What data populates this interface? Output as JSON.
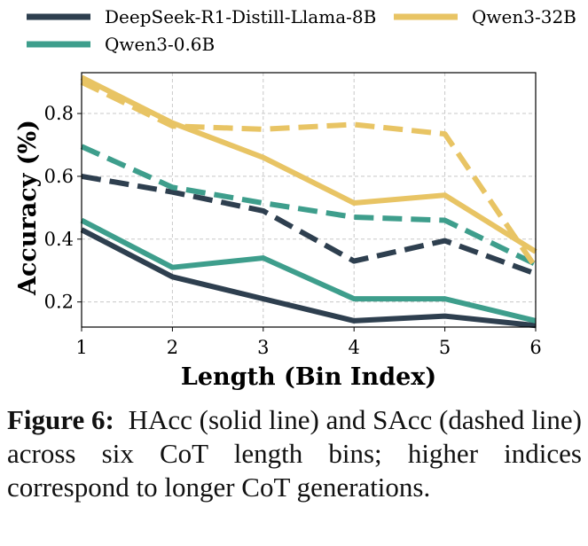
{
  "chart_data": {
    "type": "line",
    "xlabel": "Length (Bin Index)",
    "ylabel": "Accuracy (%)",
    "x": [
      1,
      2,
      3,
      4,
      5,
      6
    ],
    "xlim": [
      1,
      6
    ],
    "ylim": [
      0.12,
      0.93
    ],
    "x_ticks": [
      "1",
      "2",
      "3",
      "4",
      "5",
      "6"
    ],
    "y_ticks": [
      {
        "value": 0.2,
        "label": "0.2"
      },
      {
        "value": 0.4,
        "label": "0.4"
      },
      {
        "value": 0.6,
        "label": "0.6"
      },
      {
        "value": 0.8,
        "label": "0.8"
      }
    ],
    "grid": true,
    "legend_placement": "top (outside plot)",
    "series": [
      {
        "name": "DeepSeek-R1-Distill-Llama-8B",
        "metric": "HAcc",
        "style": "solid",
        "color": "#2e3f4f",
        "values": [
          0.43,
          0.28,
          0.21,
          0.14,
          0.155,
          0.125
        ]
      },
      {
        "name": "DeepSeek-R1-Distill-Llama-8B",
        "metric": "SAcc",
        "style": "dashed",
        "color": "#2e3f4f",
        "values": [
          0.6,
          0.55,
          0.49,
          0.33,
          0.395,
          0.29
        ]
      },
      {
        "name": "Qwen3-0.6B",
        "metric": "HAcc",
        "style": "solid",
        "color": "#3e9e8c",
        "values": [
          0.46,
          0.31,
          0.34,
          0.21,
          0.21,
          0.14
        ]
      },
      {
        "name": "Qwen3-0.6B",
        "metric": "SAcc",
        "style": "dashed",
        "color": "#3e9e8c",
        "values": [
          0.695,
          0.565,
          0.515,
          0.47,
          0.46,
          0.32
        ]
      },
      {
        "name": "Qwen3-32B",
        "metric": "HAcc",
        "style": "solid",
        "color": "#e8c464",
        "values": [
          0.915,
          0.77,
          0.66,
          0.515,
          0.54,
          0.36
        ]
      },
      {
        "name": "Qwen3-32B",
        "metric": "SAcc",
        "style": "dashed",
        "color": "#e8c464",
        "values": [
          0.9,
          0.76,
          0.75,
          0.765,
          0.735,
          0.31
        ]
      }
    ],
    "legend": [
      {
        "label": "DeepSeek-R1-Distill-Llama-8B",
        "color": "#2e3f4f"
      },
      {
        "label": "Qwen3-32B",
        "color": "#e8c464"
      },
      {
        "label": "Qwen3-0.6B",
        "color": "#3e9e8c"
      }
    ]
  },
  "caption": {
    "label": "Figure 6:",
    "text": "HAcc (solid line) and SAcc (dashed line) across six CoT length bins; higher indices correspond to longer CoT generations."
  }
}
